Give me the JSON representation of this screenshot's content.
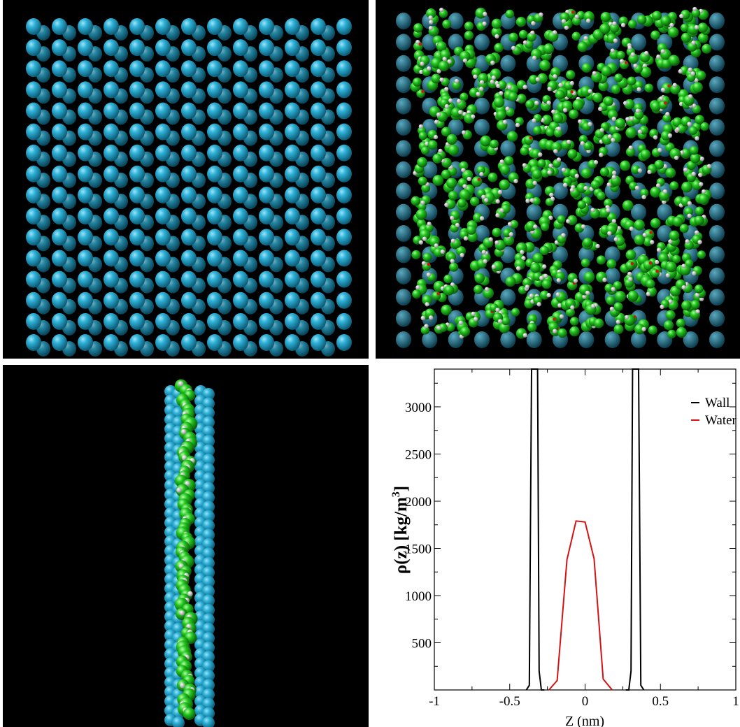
{
  "panels": {
    "top_left": {
      "image": "wall-atoms-top-view",
      "color": "#1fa6cf"
    },
    "top_right": {
      "image": "water-over-wall-top-view",
      "colors": {
        "wall": "#1b6f86",
        "oxygen": "#22c51f",
        "hydrogen": "#e8e8e8",
        "accent": "#d21414"
      }
    },
    "bottom_left": {
      "image": "confined-water-side-view",
      "colors": {
        "wall": "#1fa6cf",
        "water": "#22c51f",
        "hydrogen": "#e0e0e0"
      }
    }
  },
  "chart_data": {
    "type": "line",
    "title": "",
    "xlabel": "Z (nm)",
    "ylabel_text": "ρ(z) [kg/m",
    "ylabel_sup": "3",
    "ylabel_close": "]",
    "xlim": [
      -1,
      1
    ],
    "ylim": [
      0,
      3400
    ],
    "xticks": [
      -1,
      -0.5,
      0,
      0.5,
      1
    ],
    "xtick_labels": [
      "-1",
      "-0.5",
      "0",
      "0.5",
      "1"
    ],
    "yticks": [
      500,
      1000,
      1500,
      2000,
      2500,
      3000
    ],
    "ytick_labels": [
      "500",
      "1000",
      "1500",
      "2000",
      "2500",
      "3000"
    ],
    "legend_position": "top-right",
    "series": [
      {
        "name": "Wall",
        "color": "#000000",
        "x": [
          -0.39,
          -0.37,
          -0.355,
          -0.345,
          -0.33,
          -0.315,
          -0.305,
          -0.29,
          -0.27
        ],
        "y": [
          0,
          50,
          3400,
          3400,
          3400,
          3400,
          200,
          0,
          0
        ]
      },
      {
        "name": "Wall",
        "color": "#000000",
        "x": [
          0.27,
          0.29,
          0.305,
          0.315,
          0.33,
          0.345,
          0.355,
          0.37,
          0.39
        ],
        "y": [
          0,
          0,
          200,
          3400,
          3400,
          3400,
          3400,
          50,
          0
        ]
      },
      {
        "name": "Water",
        "color": "#d21414",
        "x": [
          -0.24,
          -0.185,
          -0.12,
          -0.06,
          0.0,
          0.06,
          0.12,
          0.18
        ],
        "y": [
          0,
          100,
          1380,
          1790,
          1780,
          1390,
          115,
          0
        ]
      }
    ],
    "legend": [
      {
        "label": "Wall",
        "color": "#000000"
      },
      {
        "label": "Water",
        "color": "#d21414"
      }
    ]
  }
}
